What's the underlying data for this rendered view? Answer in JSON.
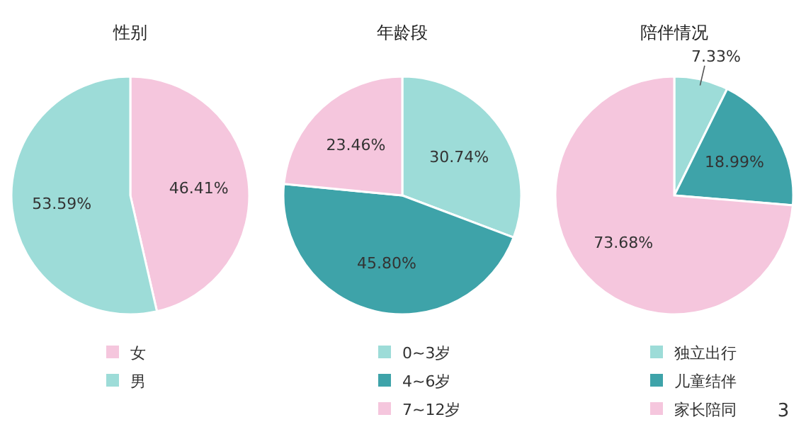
{
  "chart_data": [
    {
      "type": "pie",
      "title": "性别",
      "categories": [
        "女",
        "男"
      ],
      "values": [
        46.41,
        53.59
      ],
      "colors": [
        "#f5c6dd",
        "#9ddcd8"
      ],
      "value_labels": [
        "46.41%",
        "53.59%"
      ],
      "legend": "bottom"
    },
    {
      "type": "pie",
      "title": "年龄段",
      "categories": [
        "0~3岁",
        "4~6岁",
        "7~12岁"
      ],
      "values": [
        30.74,
        45.8,
        23.46
      ],
      "colors": [
        "#9ddcd8",
        "#3ea3a9",
        "#f5c6dd"
      ],
      "value_labels": [
        "30.74%",
        "45.80%",
        "23.46%"
      ],
      "legend": "bottom"
    },
    {
      "type": "pie",
      "title": "陪伴情况",
      "categories": [
        "独立出行",
        "儿童结伴",
        "家长陪同"
      ],
      "values": [
        7.33,
        18.99,
        73.68
      ],
      "colors": [
        "#9ddcd8",
        "#3ea3a9",
        "#f5c6dd"
      ],
      "value_labels": [
        "7.33%",
        "18.99%",
        "73.68%"
      ],
      "legend": "bottom",
      "annotations": [
        "3"
      ]
    }
  ]
}
